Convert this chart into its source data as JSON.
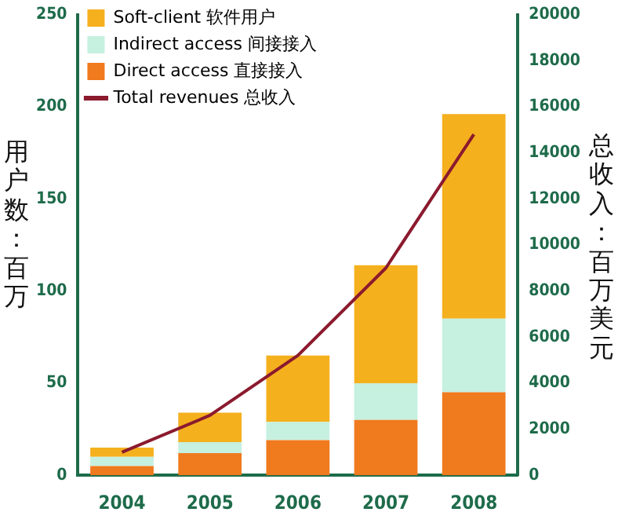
{
  "chart_data": {
    "type": "bar",
    "stacked": true,
    "categories": [
      "2004",
      "2005",
      "2006",
      "2007",
      "2008"
    ],
    "series": [
      {
        "name": "Direct access 直接接入",
        "color": "#f07a1e",
        "values": [
          5,
          12,
          19,
          30,
          45
        ]
      },
      {
        "name": "Indirect access 间接接入",
        "color": "#c6f0e0",
        "values": [
          5,
          6,
          10,
          20,
          40
        ]
      },
      {
        "name": "Soft-client 软件用户",
        "color": "#f5b01e",
        "values": [
          5,
          16,
          36,
          64,
          111
        ]
      },
      {
        "name": "Total revenues 总收入",
        "type": "line",
        "axis": "y2",
        "color": "#8b1a2e",
        "values": [
          1000,
          2600,
          5200,
          9000,
          14800
        ]
      }
    ],
    "ylabel": "用户数：百万",
    "y2label": "总收入：百万美元",
    "ylim": [
      0,
      250
    ],
    "yticks": [
      0,
      50,
      100,
      150,
      200,
      250
    ],
    "y2lim": [
      0,
      20000
    ],
    "y2ticks": [
      0,
      2000,
      4000,
      6000,
      8000,
      10000,
      12000,
      14000,
      16000,
      18000,
      20000
    ],
    "grid": false,
    "legend": "top left",
    "marker": "none",
    "line_style": "solid"
  }
}
